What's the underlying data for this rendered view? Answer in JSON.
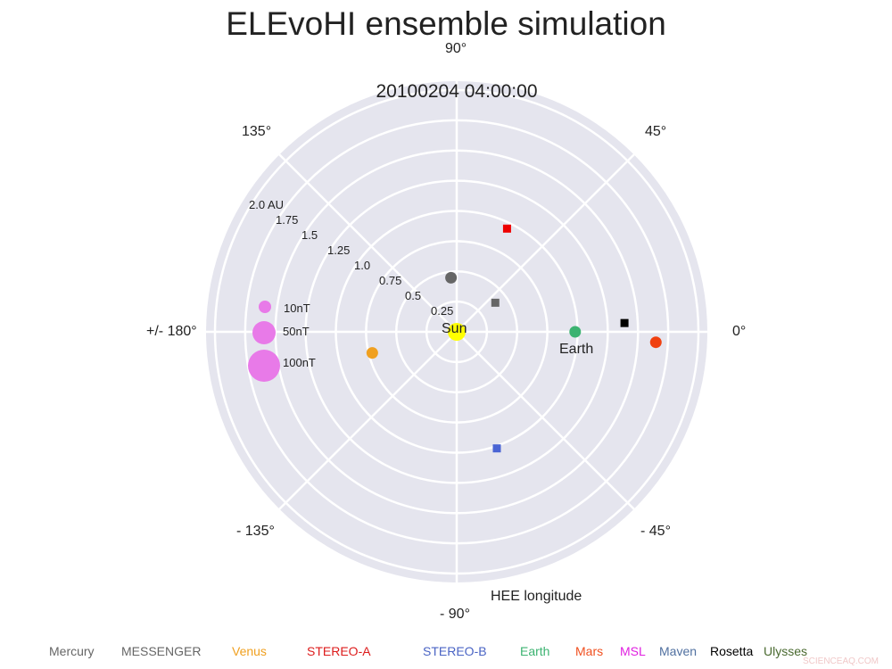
{
  "title": "ELEvoHI ensemble simulation",
  "timestamp": "20100204   04:00:00",
  "axis_label": "HEE longitude",
  "angle_labels": {
    "a90": "90°",
    "a45": "45°",
    "a0": "0°",
    "am45": "- 45°",
    "am90": "- 90°",
    "am135": "- 135°",
    "a180": "+/- 180°",
    "a135": "135°"
  },
  "radial_labels": [
    "0.25",
    "0.5",
    "0.75",
    "1.0",
    "1.25",
    "1.5",
    "1.75",
    "2.0 AU"
  ],
  "bfield_legend": [
    "10nT",
    "50nT",
    "100nT"
  ],
  "object_labels": {
    "sun": "Sun",
    "earth": "Earth"
  },
  "legend": [
    {
      "label": "Mercury",
      "color": "#666666"
    },
    {
      "label": "MESSENGER",
      "color": "#666666"
    },
    {
      "label": "Venus",
      "color": "#f0a020"
    },
    {
      "label": "STEREO-A",
      "color": "#dd1c1c"
    },
    {
      "label": "STEREO-B",
      "color": "#4a64c4"
    },
    {
      "label": "Earth",
      "color": "#3cb371"
    },
    {
      "label": "Mars",
      "color": "#f05020"
    },
    {
      "label": "MSL",
      "color": "#e020e0"
    },
    {
      "label": "Maven",
      "color": "#5070a0"
    },
    {
      "label": "Rosetta",
      "color": "#000000"
    },
    {
      "label": "Ulysses",
      "color": "#4a6a30"
    }
  ],
  "watermark": "SCIENCEAQ.COM",
  "chart_data": {
    "type": "scatter",
    "projection": "polar",
    "title": "ELEvoHI ensemble simulation",
    "subtitle": "20100204 04:00:00",
    "xlabel": "HEE longitude",
    "theta_ticks": [
      0,
      45,
      90,
      135,
      180,
      -135,
      -90,
      -45
    ],
    "theta_tick_labels": [
      "0°",
      "45°",
      "90°",
      "135°",
      "+/- 180°",
      "- 135°",
      "- 90°",
      "- 45°"
    ],
    "r_ticks": [
      0.25,
      0.5,
      0.75,
      1.0,
      1.25,
      1.5,
      1.75,
      2.0
    ],
    "r_tick_labels": [
      "0.25",
      "0.5",
      "0.75",
      "1.0",
      "1.25",
      "1.5",
      "1.75",
      "2.0 AU"
    ],
    "rlim": [
      0,
      2.08
    ],
    "grid": true,
    "series": [
      {
        "name": "Sun",
        "marker": "circle",
        "color": "#ffff00",
        "r": 0.0,
        "lon_deg": 0
      },
      {
        "name": "Mercury",
        "marker": "circle",
        "color": "#666666",
        "r": 0.45,
        "lon_deg": 96
      },
      {
        "name": "MESSENGER",
        "marker": "square",
        "color": "#666666",
        "r": 0.4,
        "lon_deg": 37
      },
      {
        "name": "Venus",
        "marker": "circle",
        "color": "#f0a020",
        "r": 0.72,
        "lon_deg": -166
      },
      {
        "name": "STEREO-A",
        "marker": "square",
        "color": "#ee0000",
        "r": 0.95,
        "lon_deg": 64
      },
      {
        "name": "STEREO-B",
        "marker": "square",
        "color": "#4a64d4",
        "r": 1.02,
        "lon_deg": -71
      },
      {
        "name": "Earth",
        "marker": "circle",
        "color": "#3cb371",
        "r": 0.98,
        "lon_deg": 0
      },
      {
        "name": "Mars",
        "marker": "circle",
        "color": "#f04010",
        "r": 1.65,
        "lon_deg": -3
      },
      {
        "name": "Rosetta",
        "marker": "square",
        "color": "#000000",
        "r": 1.39,
        "lon_deg": 3
      }
    ],
    "size_legend": [
      {
        "label": "10nT",
        "color": "#e87ae8"
      },
      {
        "label": "50nT",
        "color": "#e87ae8"
      },
      {
        "label": "100nT",
        "color": "#e87ae8"
      }
    ],
    "legend_position": "bottom"
  }
}
